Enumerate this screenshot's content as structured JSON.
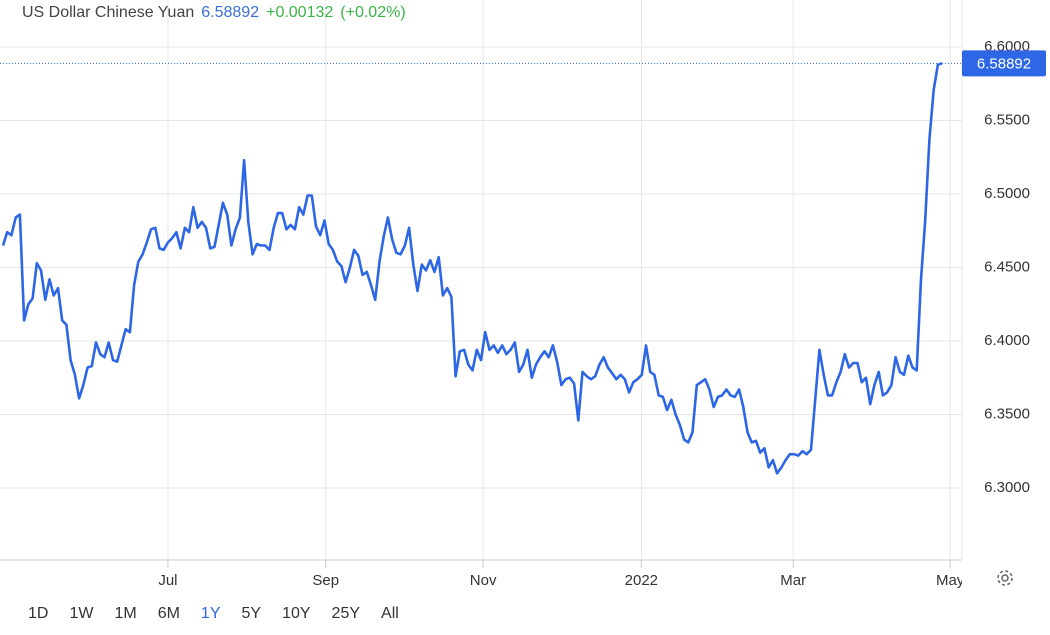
{
  "header": {
    "title": "US Dollar Chinese Yuan",
    "change": "+0.00132",
    "change_pct": "(+0.02%)"
  },
  "ranges": [
    "1D",
    "1W",
    "1M",
    "6M",
    "1Y",
    "5Y",
    "10Y",
    "25Y",
    "All"
  ],
  "selected_range": 4,
  "chart_data": {
    "type": "line",
    "color": "#2d67e6",
    "grid": true,
    "last_value": 6.58892,
    "xlim": [
      -0.7,
      226.7
    ],
    "xticks": [
      {
        "value": 39.0,
        "label": "Jul"
      },
      {
        "value": 76.3,
        "label": "Sep"
      },
      {
        "value": 113.5,
        "label": "Nov"
      },
      {
        "value": 150.9,
        "label": "2022"
      },
      {
        "value": 186.8,
        "label": "Mar"
      },
      {
        "value": 223.9,
        "label": "May"
      }
    ],
    "ylim": [
      6.251,
      6.632
    ],
    "yticks": [
      {
        "value": 6.3,
        "label": "6.3000"
      },
      {
        "value": 6.35,
        "label": "6.3500"
      },
      {
        "value": 6.4,
        "label": "6.4000"
      },
      {
        "value": 6.45,
        "label": "6.4500"
      },
      {
        "value": 6.5,
        "label": "6.5000"
      },
      {
        "value": 6.55,
        "label": "6.5500"
      },
      {
        "value": 6.6,
        "label": "6.6000"
      }
    ],
    "values": [
      6.465,
      6.474,
      6.472,
      6.484,
      6.486,
      6.414,
      6.425,
      6.429,
      6.453,
      6.448,
      6.428,
      6.442,
      6.431,
      6.436,
      6.414,
      6.411,
      6.387,
      6.377,
      6.361,
      6.37,
      6.382,
      6.383,
      6.399,
      6.391,
      6.389,
      6.399,
      6.387,
      6.386,
      6.397,
      6.408,
      6.406,
      6.438,
      6.454,
      6.459,
      6.467,
      6.476,
      6.477,
      6.463,
      6.462,
      6.467,
      6.47,
      6.474,
      6.463,
      6.477,
      6.474,
      6.491,
      6.477,
      6.481,
      6.477,
      6.463,
      6.464,
      6.479,
      6.494,
      6.486,
      6.465,
      6.476,
      6.484,
      6.523,
      6.481,
      6.459,
      6.466,
      6.465,
      6.465,
      6.462,
      6.477,
      6.487,
      6.487,
      6.476,
      6.479,
      6.476,
      6.491,
      6.486,
      6.499,
      6.499,
      6.478,
      6.472,
      6.482,
      6.466,
      6.462,
      6.454,
      6.451,
      6.44,
      6.45,
      6.462,
      6.458,
      6.445,
      6.447,
      6.438,
      6.428,
      6.454,
      6.471,
      6.484,
      6.469,
      6.46,
      6.459,
      6.465,
      6.477,
      6.452,
      6.434,
      6.452,
      6.448,
      6.455,
      6.447,
      6.457,
      6.431,
      6.436,
      6.43,
      6.376,
      6.393,
      6.394,
      6.384,
      6.38,
      6.394,
      6.387,
      6.406,
      6.394,
      6.397,
      6.392,
      6.397,
      6.391,
      6.394,
      6.399,
      6.379,
      6.384,
      6.394,
      6.375,
      6.384,
      6.389,
      6.393,
      6.389,
      6.397,
      6.386,
      6.37,
      6.374,
      6.375,
      6.371,
      6.346,
      6.379,
      6.376,
      6.374,
      6.376,
      6.384,
      6.389,
      6.382,
      6.378,
      6.374,
      6.377,
      6.374,
      6.365,
      6.372,
      6.374,
      6.377,
      6.397,
      6.379,
      6.377,
      6.363,
      6.362,
      6.353,
      6.36,
      6.35,
      6.343,
      6.333,
      6.331,
      6.338,
      6.37,
      6.372,
      6.374,
      6.367,
      6.355,
      6.362,
      6.363,
      6.367,
      6.363,
      6.362,
      6.367,
      6.355,
      6.338,
      6.331,
      6.332,
      6.324,
      6.327,
      6.314,
      6.319,
      6.31,
      6.314,
      6.319,
      6.323,
      6.323,
      6.322,
      6.325,
      6.323,
      6.326,
      6.36,
      6.394,
      6.377,
      6.363,
      6.363,
      6.372,
      6.379,
      6.391,
      6.382,
      6.385,
      6.385,
      6.372,
      6.375,
      6.357,
      6.37,
      6.379,
      6.363,
      6.365,
      6.37,
      6.389,
      6.379,
      6.377,
      6.39,
      6.382,
      6.38,
      6.442,
      6.482,
      6.537,
      6.571,
      6.588,
      6.58892
    ]
  }
}
